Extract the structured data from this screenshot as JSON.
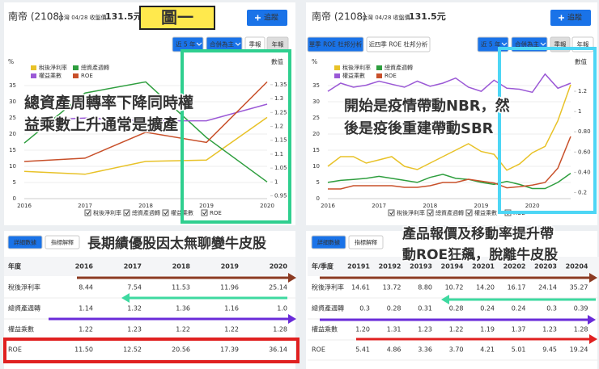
{
  "panels": [
    {
      "header": {
        "stock": "南帝 (2108)",
        "market_info": "台灣 04/28 收盤價",
        "price": "131.5元",
        "follow": "追蹤"
      },
      "buttons": [
        "近 5 年",
        "合併為主",
        "季報",
        "年報"
      ],
      "tabs": [
        "詳細數據",
        "指標解釋"
      ],
      "table": {
        "columns": [
          "年度",
          "2016",
          "2017",
          "2018",
          "2019",
          "2020"
        ],
        "rows": [
          [
            "稅後淨利率",
            "8.44",
            "7.54",
            "11.53",
            "11.96",
            "25.14"
          ],
          [
            "總資產週轉",
            "1.14",
            "1.32",
            "1.36",
            "1.16",
            "1.0"
          ],
          [
            "權益乘數",
            "1.22",
            "1.23",
            "1.22",
            "1.22",
            "1.28"
          ],
          [
            "ROE",
            "11.50",
            "12.52",
            "20.56",
            "17.39",
            "36.14"
          ]
        ]
      }
    },
    {
      "header": {
        "stock": "南帝 (2108)",
        "market_info": "台灣 04/28 收盤價",
        "price": "131.5元",
        "follow": "追蹤"
      },
      "analysis_buttons": [
        "單季 ROE 杜邦分析",
        "近四季 ROE 杜邦分析"
      ],
      "buttons": [
        "近 5 年",
        "合併為主",
        "季報",
        "年報"
      ],
      "tabs": [
        "詳細數據",
        "指標解釋"
      ],
      "table": {
        "columns": [
          "年/季度",
          "20191",
          "20192",
          "20193",
          "20194",
          "20201",
          "20202",
          "20203",
          "20204"
        ],
        "rows": [
          [
            "稅後淨利率",
            "14.61",
            "13.72",
            "8.80",
            "10.72",
            "14.20",
            "16.17",
            "24.14",
            "35.27"
          ],
          [
            "總資產週轉",
            "0.3",
            "0.28",
            "0.31",
            "0.28",
            "0.24",
            "0.24",
            "0.3",
            "0.39"
          ],
          [
            "權益乘數",
            "1.20",
            "1.31",
            "1.23",
            "1.22",
            "1.19",
            "1.37",
            "1.23",
            "1.28"
          ],
          [
            "ROE",
            "5.41",
            "4.86",
            "3.36",
            "3.70",
            "4.21",
            "5.01",
            "9.45",
            "19.24"
          ]
        ]
      }
    }
  ],
  "chart_data": [
    {
      "type": "line",
      "y_title": "%",
      "y2_title": "數值",
      "legend": "top-left",
      "categories": [
        "2016",
        "2017",
        "2018",
        "2019",
        "2020"
      ],
      "series": [
        {
          "name": "稅後淨利率",
          "color": "#e8c228",
          "values": [
            8.44,
            7.54,
            11.53,
            11.96,
            25.14
          ]
        },
        {
          "name": "總資產週轉",
          "color": "#2e9e3e",
          "axis": "y2",
          "values": [
            1.14,
            1.32,
            1.36,
            1.16,
            1.0
          ]
        },
        {
          "name": "權益乘數",
          "color": "#9b59d6",
          "axis": "y2",
          "values": [
            1.22,
            1.23,
            1.22,
            1.22,
            1.28
          ]
        },
        {
          "name": "ROE",
          "color": "#c8502a",
          "values": [
            11.5,
            12.52,
            20.56,
            17.39,
            36.14
          ]
        }
      ],
      "ylim": [
        0,
        37
      ],
      "yticks": [
        0,
        5,
        10,
        15,
        20,
        25,
        30,
        35
      ],
      "y2lim": [
        0.94,
        1.37
      ],
      "y2ticks": [
        0.95,
        1,
        1.05,
        1.1,
        1.15,
        1.2,
        1.25,
        1.3,
        1.35
      ]
    },
    {
      "type": "line",
      "y_title": "%",
      "y2_title": "數值",
      "legend": "top-left",
      "categories": [
        "2016",
        null,
        null,
        null,
        "2017",
        null,
        null,
        null,
        "2018",
        null,
        null,
        null,
        "2019",
        null,
        null,
        null,
        "2020",
        null,
        null,
        null
      ],
      "series": [
        {
          "name": "稅後淨利率",
          "color": "#e8c228",
          "values": [
            10,
            13,
            13,
            11,
            12,
            13,
            10,
            9,
            11,
            13,
            15,
            17,
            14.61,
            13.72,
            8.8,
            10.72,
            14.2,
            16.17,
            24.14,
            35.27
          ]
        },
        {
          "name": "總資產週轉",
          "color": "#2e9e3e",
          "axis": "y2",
          "values": [
            0.3,
            0.32,
            0.33,
            0.34,
            0.36,
            0.34,
            0.32,
            0.3,
            0.35,
            0.38,
            0.34,
            0.33,
            0.3,
            0.28,
            0.31,
            0.28,
            0.24,
            0.24,
            0.3,
            0.39
          ]
        },
        {
          "name": "權益乘數",
          "color": "#9b59d6",
          "axis": "y2",
          "values": [
            1.2,
            1.28,
            1.24,
            1.26,
            1.3,
            1.27,
            1.24,
            1.3,
            1.25,
            1.28,
            1.33,
            1.24,
            1.2,
            1.31,
            1.23,
            1.22,
            1.19,
            1.37,
            1.23,
            1.28
          ]
        },
        {
          "name": "ROE",
          "color": "#c8502a",
          "values": [
            3,
            3,
            4,
            4,
            4,
            4,
            3.5,
            3.5,
            4,
            5,
            5,
            6,
            5.41,
            4.86,
            3.36,
            3.7,
            4.21,
            5.01,
            9.45,
            19.24
          ]
        }
      ],
      "ylim": [
        0,
        37
      ],
      "yticks": [
        0,
        5,
        10,
        15,
        20,
        25,
        30,
        35
      ],
      "y2lim": [
        0.14,
        1.32
      ],
      "y2ticks": [
        0.2,
        {
          "value": 0.4,
          "label": "0.40"
        },
        {
          "value": 0.6,
          "label": "0.60"
        },
        {
          "value": 0.8,
          "label": "0.80"
        },
        1,
        1.2
      ]
    }
  ],
  "annotations": [
    "圖一",
    "總資產周轉率下降同時權",
    "益乘數上升通常是擴產",
    "開始是疫情帶動NBR，然",
    "後是疫後重建帶動SBR",
    "長期績優股因太無聊變牛皮股",
    "產品報價及移動率提升帶",
    "動ROE狂飆，脫離牛皮股"
  ]
}
